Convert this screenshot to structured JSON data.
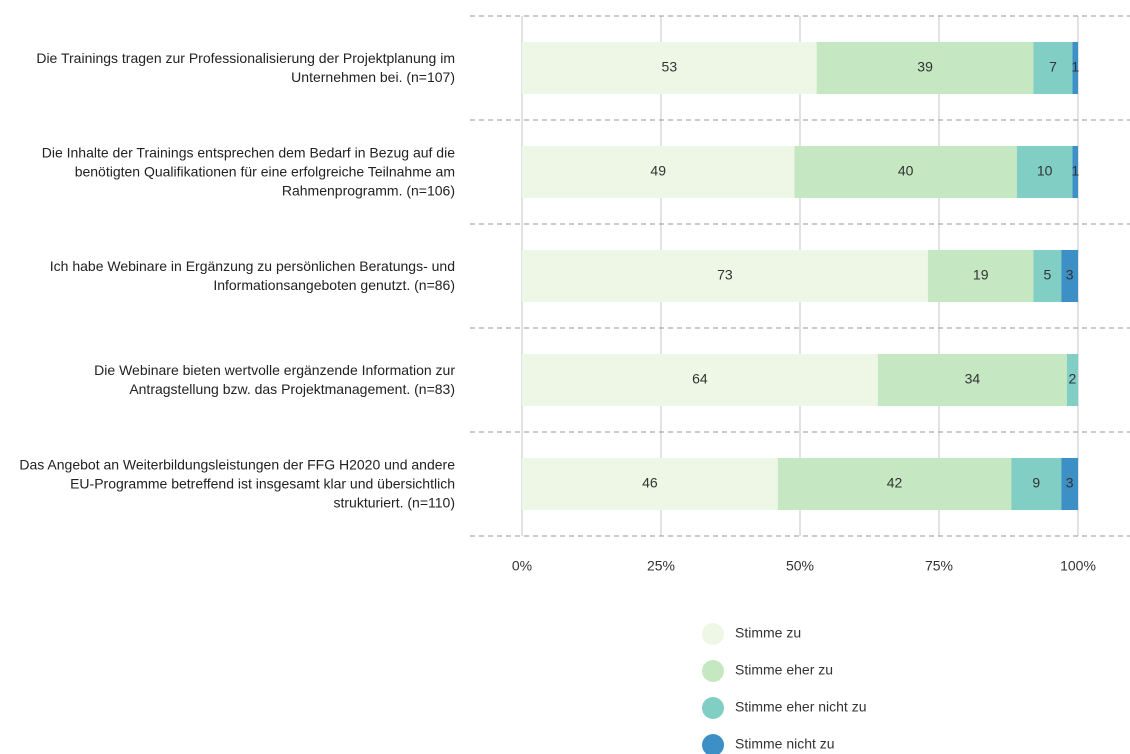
{
  "chart_data": {
    "type": "stacked_barh",
    "categories": [
      "Die Trainings tragen zur Professionalisierung der Projektplanung im Unternehmen bei. (n=107)",
      "Die Inhalte der Trainings entsprechen dem Bedarf in Bezug auf die benötigten Qualifikationen für eine erfolgreiche Teilnahme am Rahmenprogramm. (n=106)",
      "Ich habe Webinare in Ergänzung zu persönlichen Beratungs- und Informationsangeboten genutzt. (n=86)",
      "Die Webinare bieten wertvolle ergänzende Information zur Antragstellung bzw. das Projektmanagement. (n=83)",
      "Das Angebot an Weiterbildungsleistungen der FFG H2020 und andere EU-Programme betreffend ist insgesamt klar und übersichtlich strukturiert. (n=110)"
    ],
    "series": [
      {
        "name": "Stimme zu",
        "color": "#eef7e6",
        "values": [
          53,
          49,
          73,
          64,
          46
        ]
      },
      {
        "name": "Stimme eher zu",
        "color": "#c5e7c1",
        "values": [
          39,
          40,
          19,
          34,
          42
        ]
      },
      {
        "name": "Stimme eher nicht zu",
        "color": "#80cec4",
        "values": [
          7,
          10,
          5,
          2,
          9
        ]
      },
      {
        "name": "Stimme nicht zu",
        "color": "#3c90c6",
        "values": [
          1,
          1,
          3,
          0,
          3
        ]
      }
    ],
    "xlim": [
      0,
      100
    ],
    "xticks": [
      {
        "value": 0,
        "label": "0%"
      },
      {
        "value": 25,
        "label": "25%"
      },
      {
        "value": 50,
        "label": "50%"
      },
      {
        "value": 75,
        "label": "75%"
      },
      {
        "value": 100,
        "label": "100%"
      }
    ],
    "grid": true,
    "legend": "bottom"
  }
}
